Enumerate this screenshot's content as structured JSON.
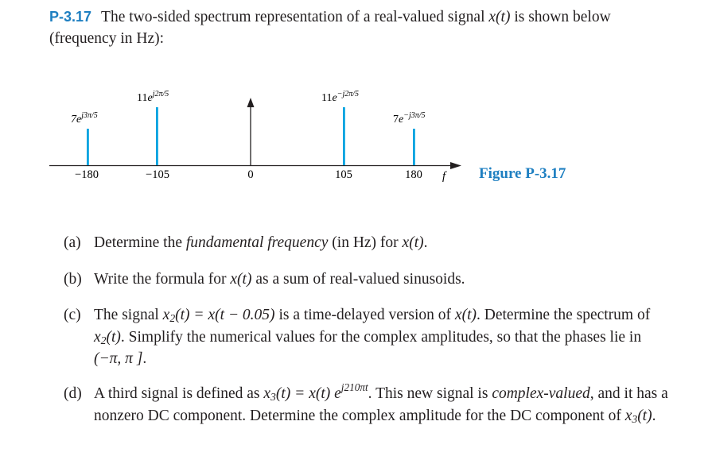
{
  "problem": {
    "number": "P-3.17",
    "statement_lead": "The two-sided spectrum representation of a real-valued signal",
    "signal": "x(t)",
    "statement_tail": "is shown below (frequency in Hz):"
  },
  "figure": {
    "caption": "Figure P-3.17",
    "axis_label": "f",
    "origin_label": "0",
    "line_color": "#00a3e0",
    "spectral_lines": [
      {
        "frequency_label": "−180",
        "mag": "7",
        "phase": "j3π/5",
        "magnitude": 7
      },
      {
        "frequency_label": "−105",
        "mag": "11",
        "phase": "j2π/5",
        "magnitude": 11
      },
      {
        "frequency_label": "105",
        "mag": "11",
        "phase": "−j2π/5",
        "magnitude": 11
      },
      {
        "frequency_label": "180",
        "mag": "7",
        "phase": "−j3π/5",
        "magnitude": 7
      }
    ]
  },
  "parts": {
    "a": {
      "label": "(a)",
      "t1": "Determine the",
      "t2": "fundamental frequency",
      "t3": "(in Hz) for",
      "t4": "x(t)",
      "t5": "."
    },
    "b": {
      "label": "(b)",
      "t1": "Write the formula for",
      "t2": "x(t)",
      "t3": "as a sum of real-valued sinusoids."
    },
    "c": {
      "label": "(c)",
      "t1": "The signal",
      "t2": "x",
      "t3": "2",
      "t4": "(t) = x(t − 0.05)",
      "t5": "is a time-delayed version of",
      "t6": "x(t)",
      "t7": ". Determine the spectrum of",
      "t8": "x",
      "t9": "2",
      "t10": "(t)",
      "t11": ". Simplify the numerical values for the complex amplitudes, so that the phases lie in",
      "t12": "(−π, π ]",
      "t13": "."
    },
    "d": {
      "label": "(d)",
      "t1": "A third signal is defined as",
      "t2": "x",
      "t3": "3",
      "t4": "(t) = x(t) e",
      "t5": "j210πt",
      "t6": ". This new signal is",
      "t7": "complex-valued",
      "t8": ", and it has a nonzero DC component. Determine the complex amplitude for the DC component of",
      "t9": "x",
      "t10": "3",
      "t11": "(t)",
      "t12": "."
    }
  }
}
